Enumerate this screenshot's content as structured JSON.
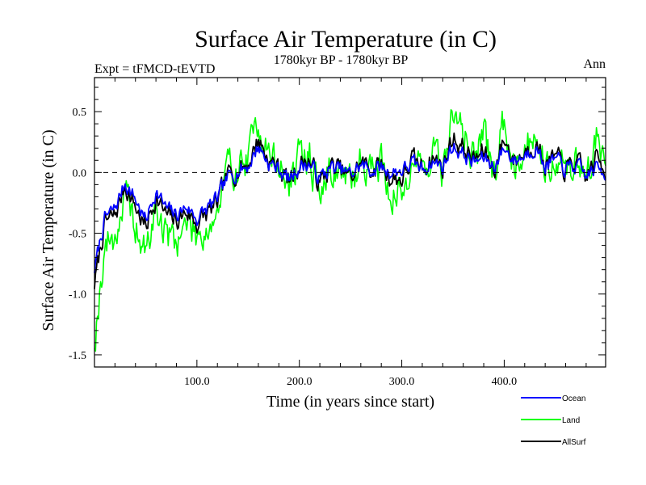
{
  "chart_data": {
    "type": "line",
    "title": "Surface Air Temperature (in C)",
    "subtitle": "1780kyr BP - 1780kyr BP",
    "left_annotation": "Expt = tFMCD-tEVTD",
    "right_annotation": "Ann",
    "xlabel": "Time (in years since start)",
    "ylabel": "Surface Air Temperature (in C)",
    "xlim": [
      0,
      499
    ],
    "ylim": [
      -1.6,
      0.78
    ],
    "xticks": [
      100,
      200,
      300,
      400
    ],
    "xtick_labels": [
      "100.0",
      "200.0",
      "300.0",
      "400.0"
    ],
    "yticks": [
      -1.5,
      -1.0,
      -0.5,
      0.0,
      0.5
    ],
    "ytick_labels": [
      "-1.5",
      "-1.0",
      "-0.5",
      "0.0",
      "0.5"
    ],
    "reference_line": 0.0,
    "legend_position": "bottom-right",
    "x": [
      0,
      10,
      20,
      30,
      40,
      50,
      60,
      70,
      80,
      90,
      100,
      110,
      120,
      130,
      140,
      150,
      160,
      170,
      180,
      190,
      200,
      210,
      220,
      230,
      240,
      250,
      260,
      270,
      280,
      290,
      300,
      310,
      320,
      330,
      340,
      350,
      360,
      370,
      380,
      390,
      400,
      410,
      420,
      430,
      440,
      450,
      460,
      470,
      480,
      490,
      499
    ],
    "series": [
      {
        "name": "Ocean",
        "color": "#0000ff",
        "values": [
          -0.8,
          -0.38,
          -0.3,
          -0.08,
          -0.22,
          -0.4,
          -0.15,
          -0.3,
          -0.35,
          -0.28,
          -0.38,
          -0.3,
          -0.22,
          -0.05,
          0.02,
          0.05,
          0.22,
          0.08,
          0.03,
          -0.06,
          0.05,
          0.07,
          -0.05,
          0.04,
          0.02,
          -0.02,
          0.06,
          0.02,
          0.04,
          0.0,
          0.02,
          0.07,
          0.03,
          0.09,
          0.05,
          0.22,
          0.15,
          0.08,
          0.12,
          0.05,
          0.2,
          0.1,
          0.14,
          0.22,
          0.06,
          0.1,
          0.03,
          0.05,
          -0.03,
          0.04,
          0.0
        ]
      },
      {
        "name": "Land",
        "color": "#00ff00",
        "values": [
          -1.38,
          -0.6,
          -0.52,
          -0.2,
          -0.45,
          -0.68,
          -0.3,
          -0.52,
          -0.55,
          -0.42,
          -0.5,
          -0.45,
          -0.35,
          0.02,
          0.05,
          0.1,
          0.45,
          0.15,
          0.05,
          -0.1,
          0.1,
          0.15,
          -0.2,
          0.05,
          0.02,
          -0.12,
          0.12,
          0.05,
          0.08,
          -0.18,
          -0.2,
          0.15,
          0.02,
          0.2,
          0.0,
          0.5,
          0.3,
          0.15,
          0.28,
          -0.02,
          0.42,
          0.1,
          0.2,
          0.35,
          0.08,
          0.15,
          0.0,
          0.12,
          -0.1,
          0.3,
          0.1
        ]
      },
      {
        "name": "AllSurf",
        "color": "#000000",
        "values": [
          -0.92,
          -0.42,
          -0.36,
          -0.1,
          -0.28,
          -0.46,
          -0.2,
          -0.36,
          -0.4,
          -0.32,
          -0.42,
          -0.34,
          -0.26,
          -0.03,
          0.03,
          0.07,
          0.28,
          0.1,
          0.04,
          -0.07,
          0.07,
          0.1,
          -0.1,
          0.05,
          0.02,
          -0.05,
          0.08,
          0.03,
          0.05,
          -0.05,
          -0.05,
          0.1,
          0.03,
          0.13,
          0.04,
          0.3,
          0.2,
          0.1,
          0.17,
          0.03,
          0.27,
          0.1,
          0.16,
          0.26,
          0.07,
          0.12,
          0.02,
          0.08,
          -0.05,
          0.12,
          0.03
        ]
      }
    ]
  }
}
